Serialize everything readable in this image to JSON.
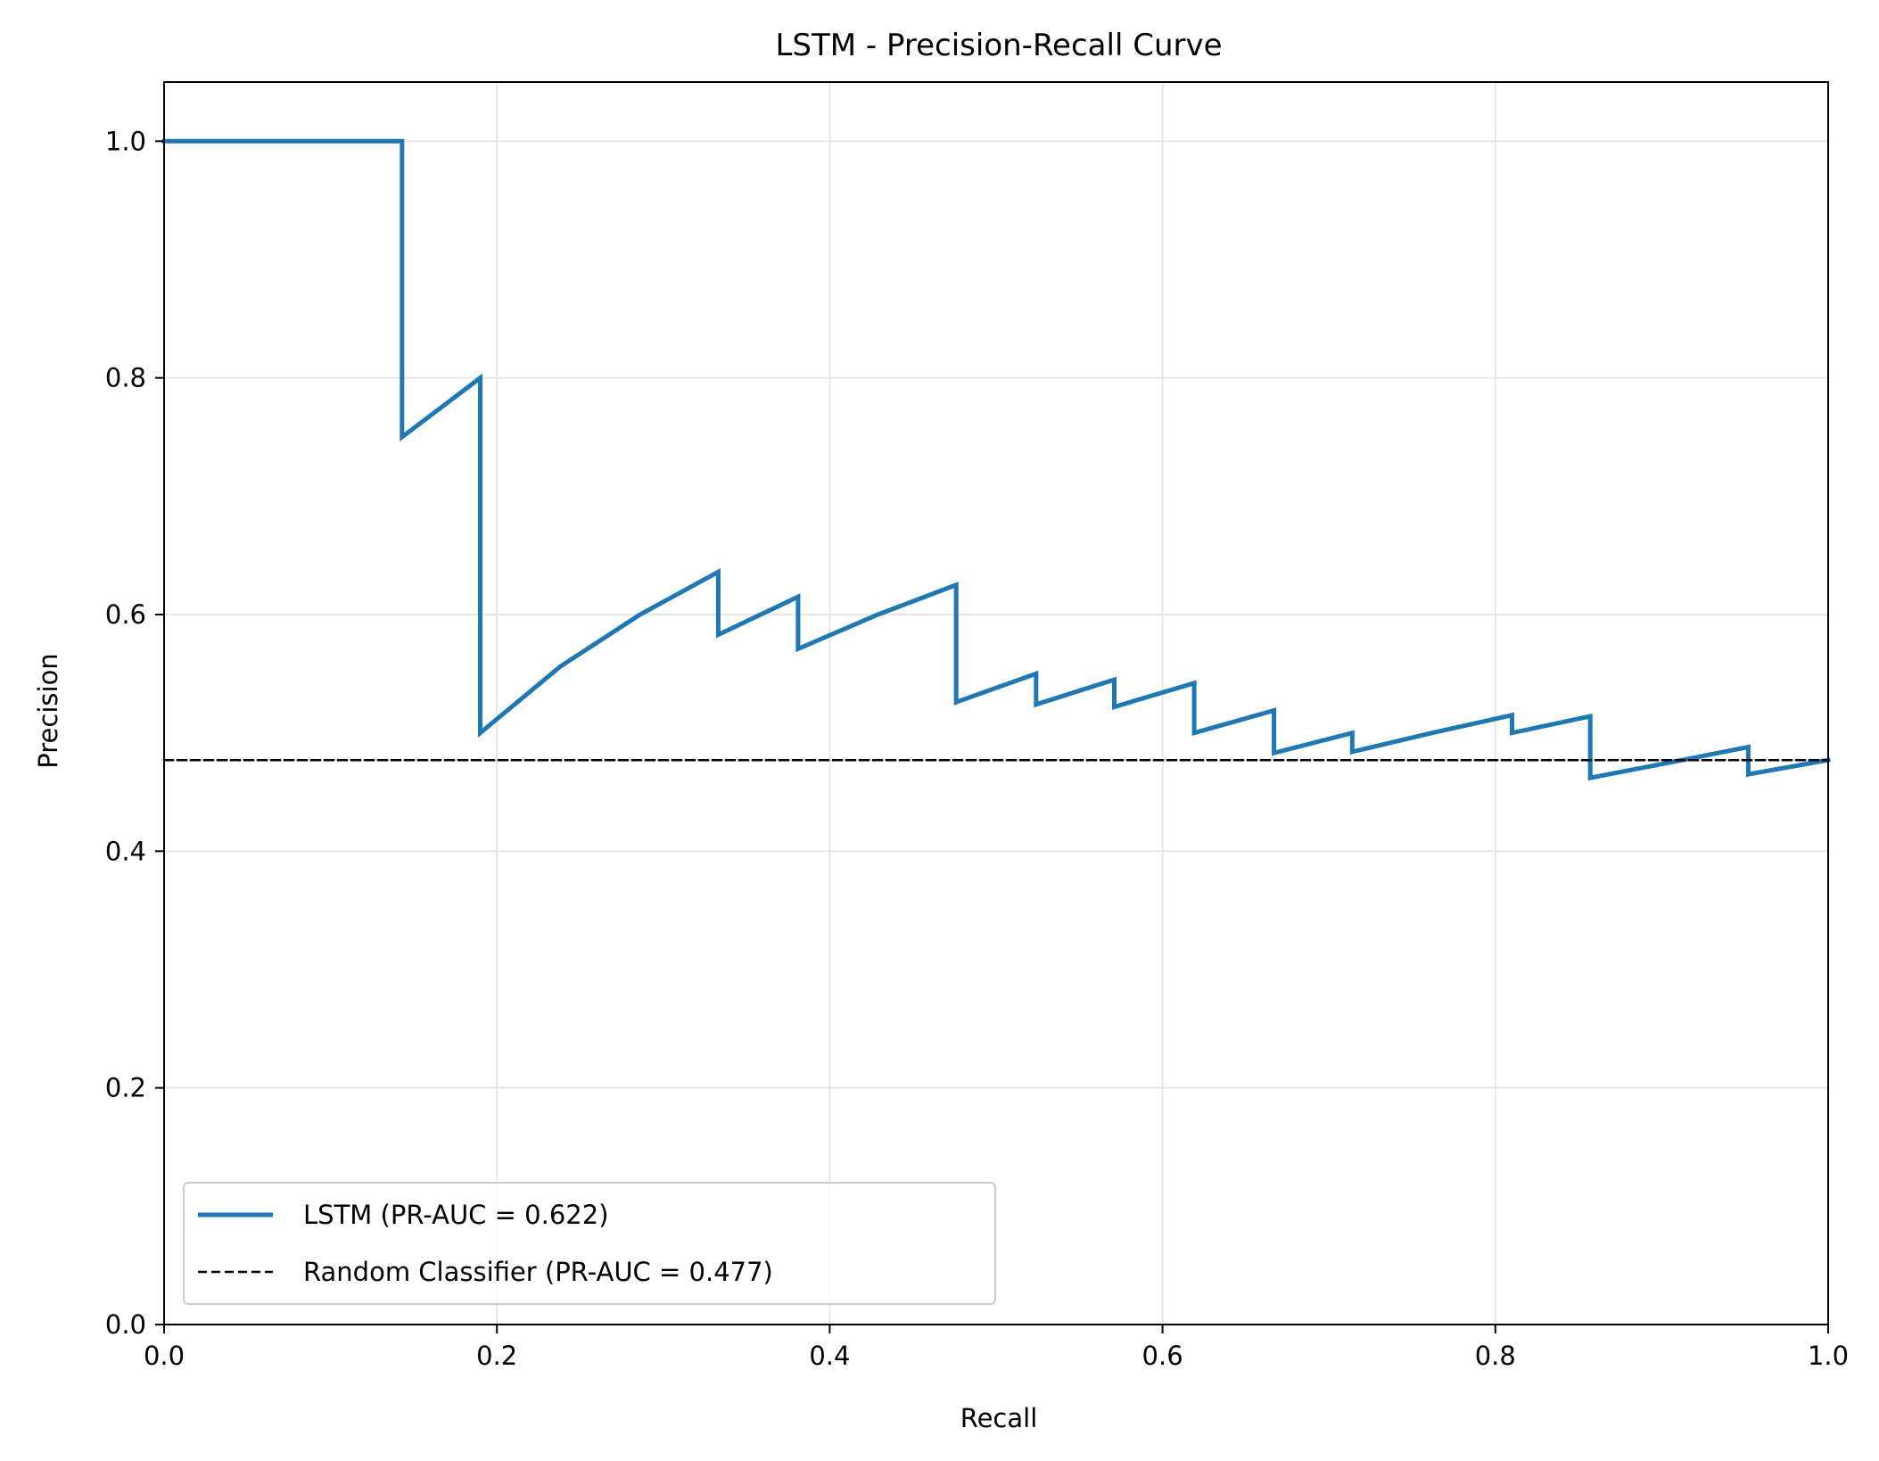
{
  "chart_data": {
    "type": "line",
    "title": "LSTM - Precision-Recall Curve",
    "xlabel": "Recall",
    "ylabel": "Precision",
    "xlim": [
      0.0,
      1.0
    ],
    "ylim": [
      0.0,
      1.05
    ],
    "x_ticks": [
      0.0,
      0.2,
      0.4,
      0.6,
      0.8,
      1.0
    ],
    "x_tick_labels": [
      "0.0",
      "0.2",
      "0.4",
      "0.6",
      "0.8",
      "1.0"
    ],
    "y_ticks": [
      0.0,
      0.2,
      0.4,
      0.6,
      0.8,
      1.0
    ],
    "y_tick_labels": [
      "0.0",
      "0.2",
      "0.4",
      "0.6",
      "0.8",
      "1.0"
    ],
    "grid": true,
    "legend_position": "lower-left",
    "series": [
      {
        "name": "LSTM (PR-AUC = 0.622)",
        "color": "#1f77b4",
        "style": "solid",
        "x": [
          0.0,
          0.143,
          0.143,
          0.19,
          0.19,
          0.238,
          0.286,
          0.333,
          0.333,
          0.381,
          0.381,
          0.429,
          0.476,
          0.476,
          0.524,
          0.524,
          0.571,
          0.571,
          0.619,
          0.619,
          0.667,
          0.667,
          0.714,
          0.714,
          0.762,
          0.81,
          0.81,
          0.857,
          0.857,
          0.905,
          0.952,
          0.952,
          1.0
        ],
        "y": [
          1.0,
          1.0,
          0.75,
          0.8,
          0.5,
          0.556,
          0.6,
          0.636,
          0.583,
          0.615,
          0.571,
          0.6,
          0.625,
          0.526,
          0.55,
          0.524,
          0.545,
          0.522,
          0.542,
          0.5,
          0.519,
          0.483,
          0.5,
          0.484,
          0.5,
          0.515,
          0.5,
          0.514,
          0.462,
          0.475,
          0.488,
          0.465,
          0.477
        ]
      },
      {
        "name": "Random Classifier (PR-AUC = 0.477)",
        "color": "#000000",
        "style": "dashed",
        "x": [
          0.0,
          1.0
        ],
        "y": [
          0.477,
          0.477
        ]
      }
    ]
  }
}
